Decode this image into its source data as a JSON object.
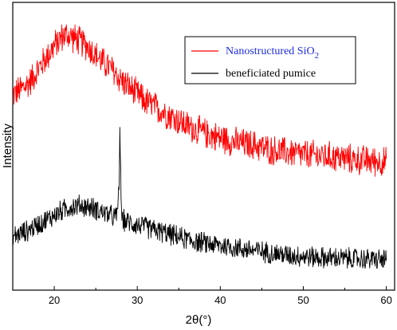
{
  "chart_data": {
    "type": "line",
    "title": "",
    "xlabel": "2θ(°)",
    "ylabel": "Intensity",
    "xlim": [
      15,
      61
    ],
    "xticks": [
      20,
      30,
      40,
      50,
      60
    ],
    "y_ticks_labeled": false,
    "grid": false,
    "legend_position": "top-right",
    "series": [
      {
        "name": "Nanostructured SiO2",
        "legend_label": "Nanostructured SiO",
        "legend_subscript": "2",
        "color": "#ff0000",
        "label_color": "#1f2de0",
        "noise": 0.7,
        "x": [
          15,
          16,
          17,
          18,
          19,
          20,
          20.5,
          21,
          21.5,
          22,
          22.5,
          23,
          24,
          25,
          26,
          27,
          28,
          29,
          30,
          31,
          32,
          33,
          34,
          35,
          36,
          38,
          40,
          42,
          44,
          46,
          48,
          50,
          52,
          54,
          56,
          58,
          60
        ],
        "y": [
          6.6,
          6.8,
          7.1,
          7.6,
          8.1,
          8.6,
          8.8,
          9.0,
          9.05,
          9.0,
          8.9,
          8.8,
          8.6,
          8.2,
          7.9,
          7.6,
          7.2,
          6.9,
          6.6,
          6.3,
          6.1,
          5.9,
          5.7,
          5.5,
          5.3,
          5.0,
          4.8,
          4.6,
          4.5,
          4.3,
          4.2,
          4.1,
          4.05,
          4.0,
          3.9,
          3.85,
          3.8
        ]
      },
      {
        "name": "beneficiated pumice",
        "legend_label": "beneficiated pumice",
        "color": "#000000",
        "label_color": "#000000",
        "noise": 0.5,
        "x": [
          15,
          16,
          17,
          18,
          19,
          20,
          21,
          22,
          23,
          24,
          25,
          26,
          27,
          27.5,
          27.8,
          27.9,
          28.0,
          28.1,
          28.2,
          28.5,
          29,
          30,
          32,
          34,
          36,
          38,
          40,
          42,
          44,
          46,
          48,
          50,
          52,
          54,
          56,
          58,
          60
        ],
        "y": [
          0.7,
          0.85,
          1.0,
          1.2,
          1.4,
          1.6,
          1.8,
          1.95,
          2.0,
          1.95,
          1.85,
          1.7,
          1.55,
          1.5,
          2.6,
          5.3,
          3.2,
          1.6,
          1.45,
          1.35,
          1.3,
          1.2,
          1.0,
          0.8,
          0.6,
          0.45,
          0.35,
          0.25,
          0.15,
          0.05,
          -0.05,
          -0.1,
          -0.15,
          -0.18,
          -0.2,
          -0.22,
          -0.25
        ]
      }
    ]
  }
}
